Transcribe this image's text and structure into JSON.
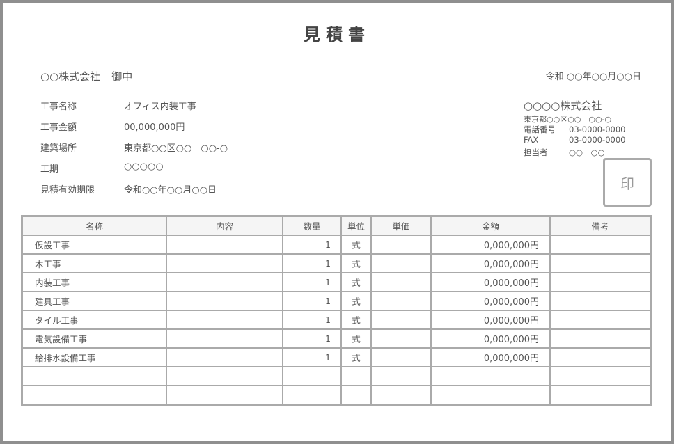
{
  "title": "見積書",
  "client": {
    "name": "○○株式会社",
    "suffix": "御中"
  },
  "date": "令和 ○○年○○月○○日",
  "info": [
    {
      "label": "工事名称",
      "value": "オフィス内装工事"
    },
    {
      "label": "工事金額",
      "value": "00,000,000円"
    },
    {
      "label": "建築場所",
      "value": "東京都○○区○○　○○-○"
    },
    {
      "label": "工期",
      "value": "○○○○○"
    },
    {
      "label": "見積有効期限",
      "value": "令和○○年○○月○○日"
    }
  ],
  "issuer": {
    "company": "○○○○株式会社",
    "address": "東京都○○区○○　○○-○",
    "tel_label": "電話番号",
    "tel": "03-0000-0000",
    "fax_label": "FAX",
    "fax": "03-0000-0000",
    "contact_label": "担当者",
    "contact": "○○　○○",
    "seal": "印"
  },
  "table": {
    "headers": [
      "名称",
      "内容",
      "数量",
      "単位",
      "単価",
      "金額",
      "備考"
    ],
    "rows": [
      {
        "name": "仮設工事",
        "content": "",
        "qty": "1",
        "unit": "式",
        "price": "",
        "amount": "0,000,000円",
        "note": ""
      },
      {
        "name": "木工事",
        "content": "",
        "qty": "1",
        "unit": "式",
        "price": "",
        "amount": "0,000,000円",
        "note": ""
      },
      {
        "name": "内装工事",
        "content": "",
        "qty": "1",
        "unit": "式",
        "price": "",
        "amount": "0,000,000円",
        "note": ""
      },
      {
        "name": "建具工事",
        "content": "",
        "qty": "1",
        "unit": "式",
        "price": "",
        "amount": "0,000,000円",
        "note": ""
      },
      {
        "name": "タイル工事",
        "content": "",
        "qty": "1",
        "unit": "式",
        "price": "",
        "amount": "0,000,000円",
        "note": ""
      },
      {
        "name": "電気設備工事",
        "content": "",
        "qty": "1",
        "unit": "式",
        "price": "",
        "amount": "0,000,000円",
        "note": ""
      },
      {
        "name": "給排水設備工事",
        "content": "",
        "qty": "1",
        "unit": "式",
        "price": "",
        "amount": "0,000,000円",
        "note": ""
      },
      {
        "name": "",
        "content": "",
        "qty": "",
        "unit": "",
        "price": "",
        "amount": "",
        "note": ""
      },
      {
        "name": "",
        "content": "",
        "qty": "",
        "unit": "",
        "price": "",
        "amount": "",
        "note": ""
      }
    ]
  },
  "colors": {
    "frame": "#8f8f8f",
    "grid": "#aaaaaa",
    "header_bg": "#f5f5f5",
    "text": "#555555"
  }
}
